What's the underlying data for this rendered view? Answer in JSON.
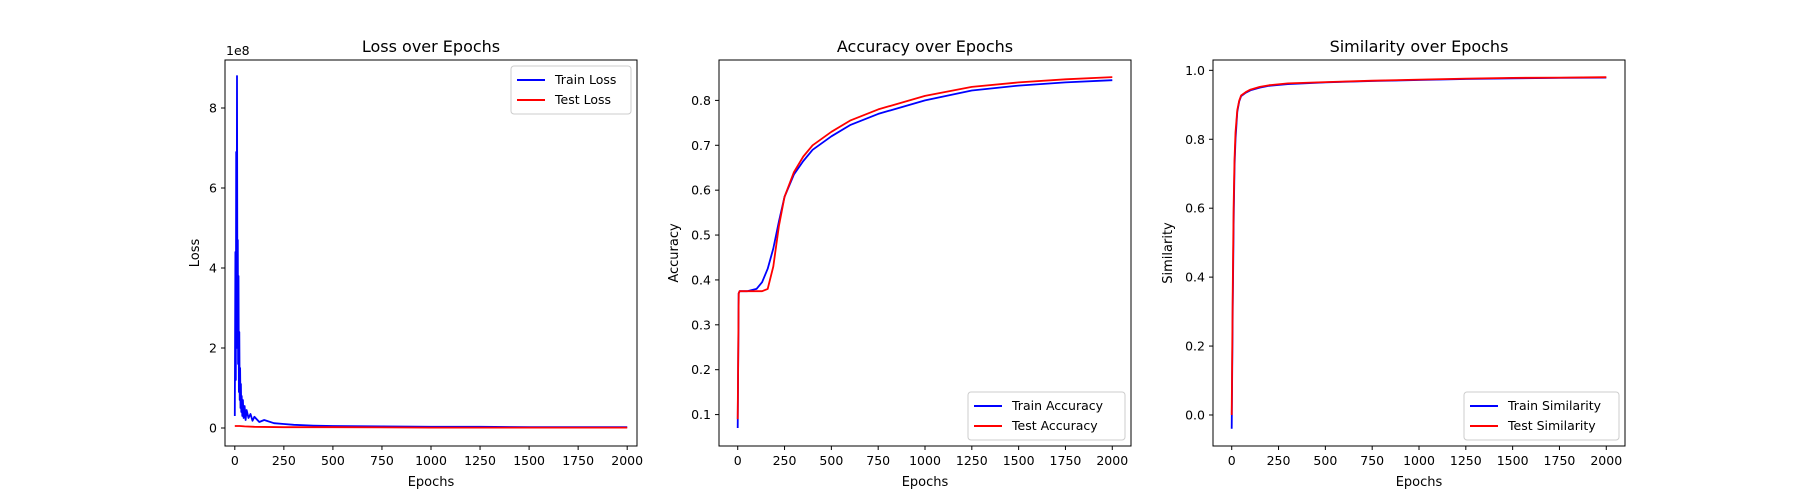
{
  "chart_data": [
    {
      "type": "line",
      "title": "Loss over Epochs",
      "xlabel": "Epochs",
      "ylabel": "Loss",
      "y_offset_text": "1e8",
      "xlim": [
        -50,
        2050
      ],
      "ylim": [
        -0.45,
        9.2
      ],
      "xticks": [
        0,
        250,
        500,
        750,
        1000,
        1250,
        1500,
        1750,
        2000
      ],
      "xtick_labels": [
        "0",
        "250",
        "500",
        "750",
        "1000",
        "1250",
        "1500",
        "1750",
        "2000"
      ],
      "yticks": [
        0,
        2,
        4,
        6,
        8
      ],
      "ytick_labels": [
        "0",
        "2",
        "4",
        "6",
        "8"
      ],
      "legend_position": "upper right",
      "grid": false,
      "series": [
        {
          "name": "Train Loss",
          "color": "#0000ff",
          "x": [
            0,
            3,
            5,
            7,
            9,
            11,
            13,
            15,
            17,
            19,
            21,
            23,
            25,
            27,
            29,
            31,
            33,
            35,
            38,
            41,
            45,
            50,
            55,
            60,
            70,
            80,
            90,
            100,
            125,
            150,
            200,
            250,
            300,
            400,
            500,
            750,
            1000,
            1250,
            1500,
            1750,
            2000
          ],
          "y": [
            0.3,
            4.4,
            1.2,
            6.9,
            2.0,
            8.8,
            3.1,
            4.7,
            1.6,
            3.8,
            0.9,
            2.4,
            0.7,
            1.5,
            0.5,
            1.1,
            0.4,
            0.8,
            0.3,
            0.7,
            0.25,
            0.55,
            0.2,
            0.45,
            0.25,
            0.35,
            0.18,
            0.28,
            0.15,
            0.2,
            0.12,
            0.1,
            0.08,
            0.06,
            0.05,
            0.04,
            0.03,
            0.03,
            0.02,
            0.02,
            0.02
          ]
        },
        {
          "name": "Test Loss",
          "color": "#ff0000",
          "x": [
            0,
            25,
            50,
            100,
            250,
            500,
            1000,
            1500,
            2000
          ],
          "y": [
            0.05,
            0.05,
            0.04,
            0.03,
            0.02,
            0.02,
            0.01,
            0.01,
            0.01
          ]
        }
      ]
    },
    {
      "type": "line",
      "title": "Accuracy over Epochs",
      "xlabel": "Epochs",
      "ylabel": "Accuracy",
      "xlim": [
        -100,
        2100
      ],
      "ylim": [
        0.03,
        0.89
      ],
      "xticks": [
        0,
        250,
        500,
        750,
        1000,
        1250,
        1500,
        1750,
        2000
      ],
      "xtick_labels": [
        "0",
        "250",
        "500",
        "750",
        "1000",
        "1250",
        "1500",
        "1750",
        "2000"
      ],
      "yticks": [
        0.1,
        0.2,
        0.3,
        0.4,
        0.5,
        0.6,
        0.7,
        0.8
      ],
      "ytick_labels": [
        "0.1",
        "0.2",
        "0.3",
        "0.4",
        "0.5",
        "0.6",
        "0.7",
        "0.8"
      ],
      "legend_position": "lower right",
      "grid": false,
      "series": [
        {
          "name": "Train Accuracy",
          "color": "#0000ff",
          "x": [
            0,
            5,
            10,
            50,
            100,
            130,
            160,
            190,
            220,
            250,
            300,
            350,
            400,
            500,
            600,
            750,
            1000,
            1250,
            1500,
            1750,
            2000
          ],
          "y": [
            0.07,
            0.37,
            0.375,
            0.375,
            0.38,
            0.395,
            0.425,
            0.47,
            0.53,
            0.585,
            0.635,
            0.665,
            0.69,
            0.72,
            0.745,
            0.77,
            0.8,
            0.822,
            0.833,
            0.84,
            0.845
          ]
        },
        {
          "name": "Test Accuracy",
          "color": "#ff0000",
          "x": [
            0,
            5,
            10,
            50,
            100,
            130,
            160,
            190,
            220,
            250,
            300,
            350,
            400,
            500,
            600,
            750,
            1000,
            1250,
            1500,
            1750,
            2000
          ],
          "y": [
            0.09,
            0.37,
            0.375,
            0.375,
            0.375,
            0.375,
            0.38,
            0.43,
            0.52,
            0.585,
            0.64,
            0.675,
            0.7,
            0.73,
            0.755,
            0.78,
            0.81,
            0.83,
            0.84,
            0.847,
            0.852
          ]
        }
      ]
    },
    {
      "type": "line",
      "title": "Similarity over Epochs",
      "xlabel": "Epochs",
      "ylabel": "Similarity",
      "xlim": [
        -100,
        2100
      ],
      "ylim": [
        -0.09,
        1.03
      ],
      "xticks": [
        0,
        250,
        500,
        750,
        1000,
        1250,
        1500,
        1750,
        2000
      ],
      "xtick_labels": [
        "0",
        "250",
        "500",
        "750",
        "1000",
        "1250",
        "1500",
        "1750",
        "2000"
      ],
      "yticks": [
        0.0,
        0.2,
        0.4,
        0.6,
        0.8,
        1.0
      ],
      "ytick_labels": [
        "0.0",
        "0.2",
        "0.4",
        "0.6",
        "0.8",
        "1.0"
      ],
      "legend_position": "lower right",
      "grid": false,
      "series": [
        {
          "name": "Train Similarity",
          "color": "#0000ff",
          "x": [
            0,
            5,
            10,
            15,
            20,
            30,
            40,
            50,
            75,
            100,
            150,
            200,
            300,
            500,
            750,
            1000,
            1250,
            1500,
            1750,
            2000
          ],
          "y": [
            -0.04,
            0.3,
            0.55,
            0.72,
            0.8,
            0.88,
            0.91,
            0.925,
            0.935,
            0.942,
            0.95,
            0.955,
            0.96,
            0.965,
            0.969,
            0.972,
            0.975,
            0.977,
            0.978,
            0.979
          ]
        },
        {
          "name": "Test Similarity",
          "color": "#ff0000",
          "x": [
            0,
            5,
            10,
            15,
            20,
            30,
            40,
            50,
            75,
            100,
            150,
            200,
            300,
            500,
            750,
            1000,
            1250,
            1500,
            1750,
            2000
          ],
          "y": [
            0.0,
            0.35,
            0.6,
            0.74,
            0.82,
            0.885,
            0.912,
            0.927,
            0.937,
            0.944,
            0.952,
            0.957,
            0.962,
            0.966,
            0.97,
            0.973,
            0.976,
            0.978,
            0.979,
            0.98
          ]
        }
      ]
    }
  ]
}
